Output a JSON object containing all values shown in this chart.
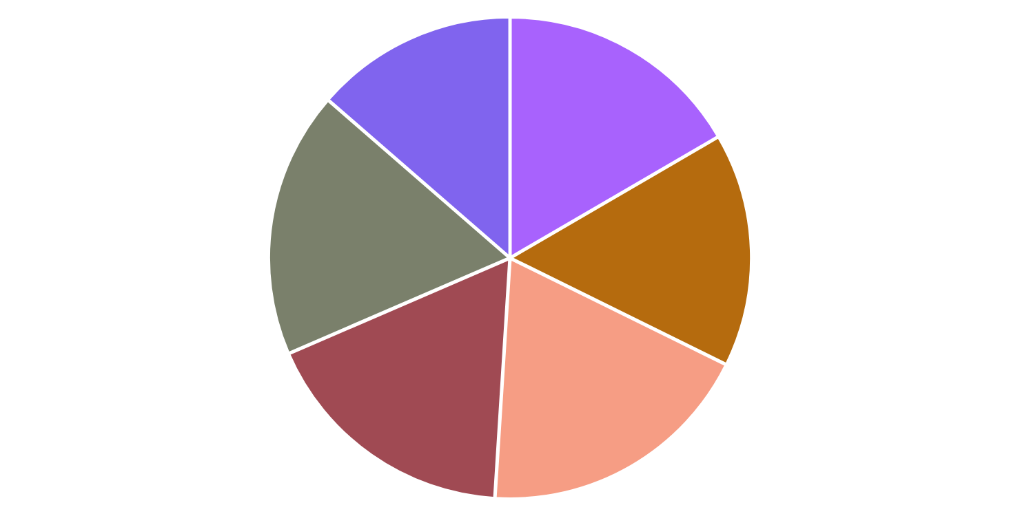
{
  "chart_data": {
    "type": "pie",
    "categories": [
      null,
      null,
      null,
      null,
      null,
      null
    ],
    "values": [
      16.6,
      15.7,
      18.7,
      17.5,
      17.9,
      13.6
    ],
    "colors": [
      "#a862fd",
      "#b56b0e",
      "#f69d84",
      "#a04a53",
      "#7a806b",
      "#8064ee"
    ]
  }
}
